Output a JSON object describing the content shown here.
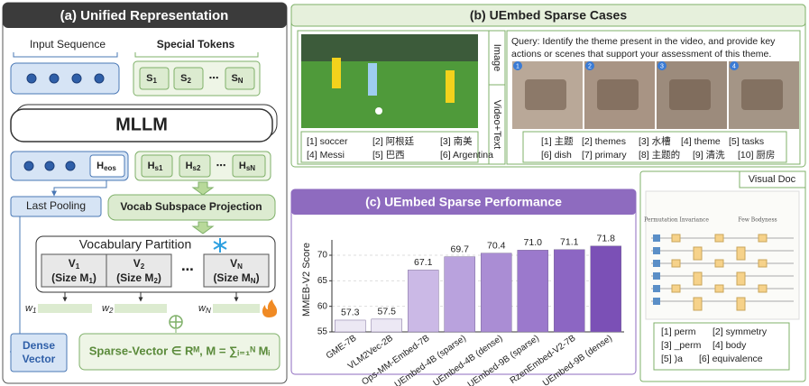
{
  "panel_a": {
    "title": "(a) Unified Representation",
    "input_sequence": "Input Sequence",
    "special_tokens": "Special Tokens",
    "tokens": [
      {
        "main": "S",
        "sub": "1"
      },
      {
        "main": "S",
        "sub": "2"
      },
      {
        "main": "S",
        "sub": "N"
      }
    ],
    "ellipsis": "⋯",
    "mllm": "MLLM",
    "h_eos": {
      "main": "H",
      "sub": "eos"
    },
    "h_tokens": [
      {
        "main": "H",
        "sub": "s1"
      },
      {
        "main": "H",
        "sub": "s2"
      },
      {
        "main": "H",
        "sub": "sN"
      }
    ],
    "last_pooling": "Last Pooling",
    "vocab_projection": "Vocab Subspace Projection",
    "vocab_partition": "Vocabulary Partition",
    "partitions": [
      {
        "main": "V",
        "sub": "1",
        "size_pre": "(Size M",
        "size_sub": "1",
        "size_post": ")"
      },
      {
        "main": "V",
        "sub": "2",
        "size_pre": "(Size M",
        "size_sub": "2",
        "size_post": ")"
      },
      {
        "main": "V",
        "sub": "N",
        "size_pre": "(Size M",
        "size_sub": "N",
        "size_post": ")"
      }
    ],
    "weights": [
      {
        "main": "w",
        "sub": "1"
      },
      {
        "main": "w",
        "sub": "2"
      },
      {
        "main": "w",
        "sub": "N"
      }
    ],
    "dense_vector": [
      "Dense",
      "Vector"
    ],
    "sparse_vector": "Sparse-Vector ∈ Rᴹ, M = ∑ᵢ₌₁ᴺ Mᵢ"
  },
  "panel_b": {
    "title": "(b) UEmbed Sparse Cases",
    "image_tab": "Image",
    "video_tab": "Video+Text",
    "image_terms": [
      "[1] soccer",
      "[2] 阿根廷",
      "[3] 南美",
      "[4] Messi",
      "[5] 巴西",
      "[6] Argentina"
    ],
    "query": [
      "Query: Identify the theme present in the video, and provide key",
      "actions or scenes that support your assessment of this theme."
    ],
    "frame_numbers": [
      "1",
      "2",
      "3",
      "4"
    ],
    "video_terms": [
      "[1] 主题",
      "[2] themes",
      "[3] 水槽",
      "[4] theme",
      "[5] tasks",
      "[6] dish",
      "[7] primary",
      "[8] 主题的",
      "[9] 清洗",
      "[10] 厨房"
    ]
  },
  "visual_doc": {
    "title": "Visual Doc",
    "doc_labels": [
      "Permutation Invariance",
      "Few Bodyness"
    ],
    "terms": [
      "[1] perm",
      "[2] symmetry",
      "[3] _perm",
      "[4] body",
      "[5] )a",
      "[6] equivalence"
    ]
  },
  "chart_data": {
    "type": "bar",
    "title": "(c) UEmbed Sparse Performance",
    "y_label": "MMEB-V2 Score",
    "categories": [
      "GME-7B",
      "VLM2Vec-2B",
      "Ops-MM-Embed-7B",
      "UEmbed-4B (sparse)",
      "UEmbed-4B (dense)",
      "UEmbed-9B (sparse)",
      "RzenEmbed-V2-7B",
      "UEmbed-9B (dense)"
    ],
    "values": [
      57.3,
      57.5,
      67.1,
      69.7,
      70.4,
      71.0,
      71.1,
      71.8
    ],
    "value_labels": [
      "57.3",
      "57.5",
      "67.1",
      "69.7",
      "70.4",
      "71.0",
      "71.1",
      "71.8"
    ],
    "colors": [
      "#ece8f4",
      "#ece8f4",
      "#cbb9e6",
      "#b9a2dd",
      "#aa8dd4",
      "#9b79cc",
      "#8c66c3",
      "#7b50b6"
    ],
    "ylim": [
      55,
      73
    ],
    "yticks": [
      55,
      60,
      65,
      70
    ],
    "grid": true
  }
}
